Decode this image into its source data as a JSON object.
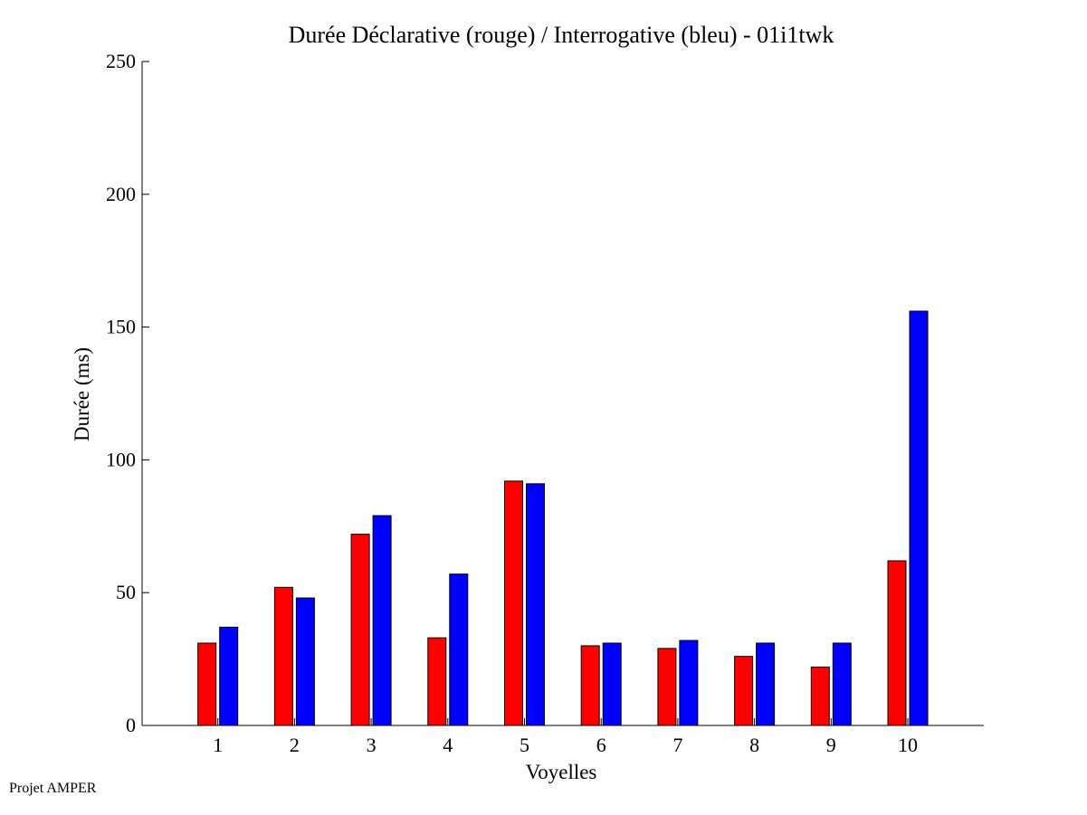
{
  "footer": {
    "text": "Projet AMPER"
  },
  "colors": {
    "declarative": "#ff0000",
    "interrogative": "#0000ff",
    "axis": "#000000"
  },
  "chart_data": {
    "type": "bar",
    "title": "Durée Déclarative (rouge) / Interrogative (bleu) - 01i1twk",
    "xlabel": "Voyelles",
    "ylabel": "Durée (ms)",
    "categories": [
      "1",
      "2",
      "3",
      "4",
      "5",
      "6",
      "7",
      "8",
      "9",
      "10"
    ],
    "series": [
      {
        "values": [
          31,
          52,
          72,
          33,
          92,
          30,
          29,
          26,
          22,
          62
        ],
        "color": "#ff0000"
      },
      {
        "values": [
          37,
          48,
          79,
          57,
          91,
          31,
          32,
          31,
          31,
          156
        ],
        "color": "#0000ff"
      }
    ],
    "ylim": [
      0,
      250
    ],
    "yticks": [
      0,
      50,
      100,
      150,
      200,
      250
    ],
    "grid": false
  }
}
